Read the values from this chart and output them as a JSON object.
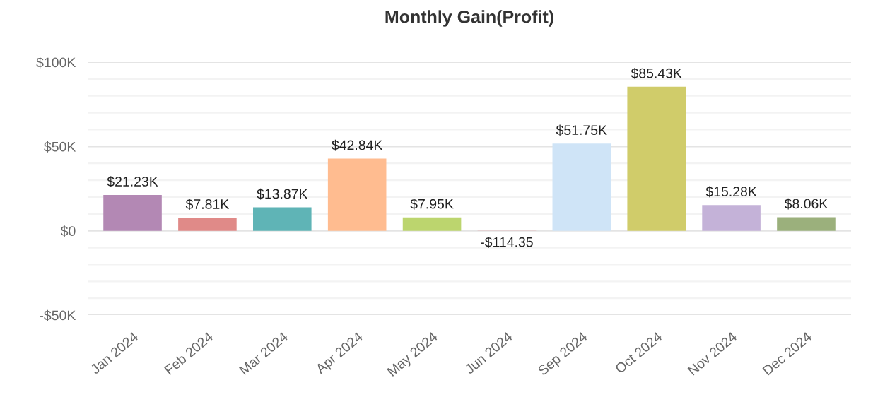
{
  "chart_data": {
    "type": "bar",
    "title": "Monthly Gain(Profit)",
    "categories": [
      "Jan 2024",
      "Feb 2024",
      "Mar 2024",
      "Apr 2024",
      "May 2024",
      "Jun 2024",
      "Sep 2024",
      "Oct 2024",
      "Nov 2024",
      "Dec 2024"
    ],
    "values": [
      21230,
      7810,
      13870,
      42840,
      7950,
      -114.35,
      51750,
      85430,
      15280,
      8060
    ],
    "value_labels": [
      "$21.23K",
      "$7.81K",
      "$13.87K",
      "$42.84K",
      "$7.95K",
      "-$114.35",
      "$51.75K",
      "$85.43K",
      "$15.28K",
      "$8.06K"
    ],
    "colors": [
      "#b388b4",
      "#e08a88",
      "#5fb4b6",
      "#ffbc90",
      "#bcd56e",
      "#e39ba0",
      "#cfe4f7",
      "#d0cc6a",
      "#c4b2d8",
      "#9bb07c"
    ],
    "ylim": [
      -50000,
      100000
    ],
    "yticks": [
      {
        "value": -50000,
        "label": "-$50K"
      },
      {
        "value": -40000,
        "label": null
      },
      {
        "value": -30000,
        "label": null
      },
      {
        "value": -20000,
        "label": null
      },
      {
        "value": -10000,
        "label": null
      },
      {
        "value": 0,
        "label": "$0"
      },
      {
        "value": 10000,
        "label": null
      },
      {
        "value": 20000,
        "label": null
      },
      {
        "value": 30000,
        "label": null
      },
      {
        "value": 40000,
        "label": null
      },
      {
        "value": 50000,
        "label": "$50K"
      },
      {
        "value": 60000,
        "label": null
      },
      {
        "value": 70000,
        "label": null
      },
      {
        "value": 80000,
        "label": null
      },
      {
        "value": 90000,
        "label": null
      },
      {
        "value": 100000,
        "label": "$100K"
      }
    ],
    "grid": "y"
  }
}
